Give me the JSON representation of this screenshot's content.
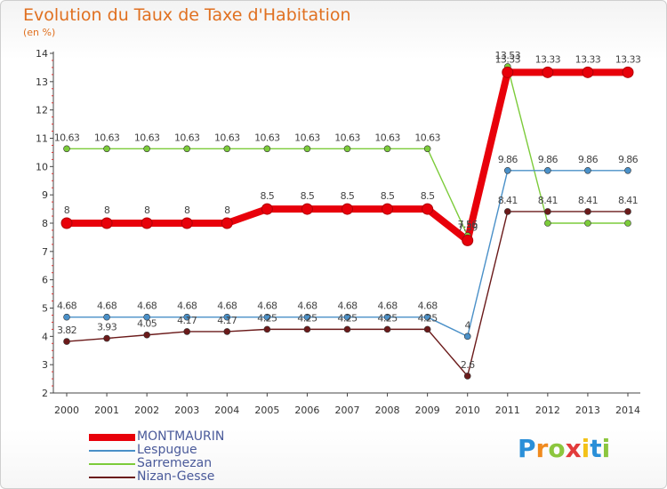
{
  "title": "Evolution du Taux de Taxe d'Habitation",
  "subtitle": "(en %)",
  "logo": {
    "text": "Proxiti",
    "letters": [
      "P",
      "r",
      "o",
      "x",
      "i",
      "t",
      "i"
    ],
    "colors": [
      "#2a8fd8",
      "#f08a1e",
      "#8cc63e",
      "#e23b3b",
      "#f3c218",
      "#2a8fd8",
      "#8cc63e"
    ]
  },
  "chart_data": {
    "type": "line",
    "x": [
      "2000",
      "2001",
      "2002",
      "2003",
      "2004",
      "2005",
      "2006",
      "2007",
      "2008",
      "2009",
      "2010",
      "2011",
      "2012",
      "2013",
      "2014"
    ],
    "ylim": [
      2,
      14
    ],
    "yticks": [
      "2",
      "3",
      "4",
      "5",
      "6",
      "7",
      "8",
      "9",
      "10",
      "11",
      "12",
      "13",
      "14"
    ],
    "grid": false,
    "legend_position": "bottom-left",
    "series": [
      {
        "name": "MONTMAURIN",
        "color": "#e8000a",
        "values": [
          8,
          8,
          8,
          8,
          8,
          8.5,
          8.5,
          8.5,
          8.5,
          8.5,
          7.39,
          13.33,
          13.33,
          13.33,
          13.33
        ],
        "labels": [
          "8",
          "8",
          "8",
          "8",
          "8",
          "8.5",
          "8.5",
          "8.5",
          "8.5",
          "8.5",
          "7.39",
          "13.33",
          "13.33",
          "13.33",
          "13.33"
        ]
      },
      {
        "name": "Lespugue",
        "color": "#4a90c8",
        "values": [
          4.68,
          4.68,
          4.68,
          4.68,
          4.68,
          4.68,
          4.68,
          4.68,
          4.68,
          4.68,
          4,
          9.86,
          9.86,
          9.86,
          9.86
        ],
        "labels": [
          "4.68",
          "4.68",
          "4.68",
          "4.68",
          "4.68",
          "4.68",
          "4.68",
          "4.68",
          "4.68",
          "4.68",
          "4",
          "9.86",
          "9.86",
          "9.86",
          "9.86"
        ]
      },
      {
        "name": "Sarremezan",
        "color": "#7ccb3a",
        "values": [
          10.63,
          10.63,
          10.63,
          10.63,
          10.63,
          10.63,
          10.63,
          10.63,
          10.63,
          10.63,
          7.56,
          13.53,
          8,
          8,
          8
        ],
        "labels": [
          "10.63",
          "10.63",
          "10.63",
          "10.63",
          "10.63",
          "10.63",
          "10.63",
          "10.63",
          "10.63",
          "10.63",
          "7.56",
          "13.53",
          "",
          "",
          ""
        ]
      },
      {
        "name": "Nizan-Gesse",
        "color": "#6b1a1a",
        "values": [
          3.82,
          3.93,
          4.05,
          4.17,
          4.17,
          4.25,
          4.25,
          4.25,
          4.25,
          4.25,
          2.6,
          8.41,
          8.41,
          8.41,
          8.41
        ],
        "labels": [
          "3.82",
          "3.93",
          "4.05",
          "4.17",
          "4.17",
          "4.25",
          "4.25",
          "4.25",
          "4.25",
          "4.25",
          "2.6",
          "8.41",
          "8.41",
          "8.41",
          "8.41"
        ]
      }
    ]
  }
}
